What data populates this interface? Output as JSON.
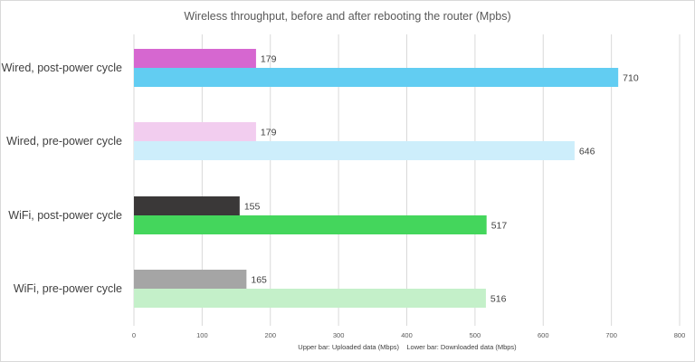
{
  "chart_data": {
    "type": "bar",
    "orientation": "horizontal",
    "title": "Wireless throughput, before and after rebooting the router (Mpbs)",
    "categories": [
      "Wired, post-power cycle",
      "Wired, pre-power cycle",
      "WiFi, post-power cycle",
      "WiFi, pre-power cycle"
    ],
    "bars": [
      {
        "upper": {
          "value": 179,
          "color": "#d667d0"
        },
        "lower": {
          "value": 710,
          "color": "#62cdf2"
        }
      },
      {
        "upper": {
          "value": 179,
          "color": "#f2cdef"
        },
        "lower": {
          "value": 646,
          "color": "#cdeefb"
        }
      },
      {
        "upper": {
          "value": 155,
          "color": "#3a3838"
        },
        "lower": {
          "value": 517,
          "color": "#44d65c"
        }
      },
      {
        "upper": {
          "value": 165,
          "color": "#a5a5a5"
        },
        "lower": {
          "value": 516,
          "color": "#c4f0c9"
        }
      }
    ],
    "xlim": [
      0,
      800
    ],
    "xticks": [
      "0",
      "100",
      "200",
      "300",
      "400",
      "500",
      "600",
      "700",
      "800"
    ],
    "grid": true,
    "note": "Upper bar: Uploaded data (Mbps)    Lower bar: Downloaded data (Mbps)"
  }
}
